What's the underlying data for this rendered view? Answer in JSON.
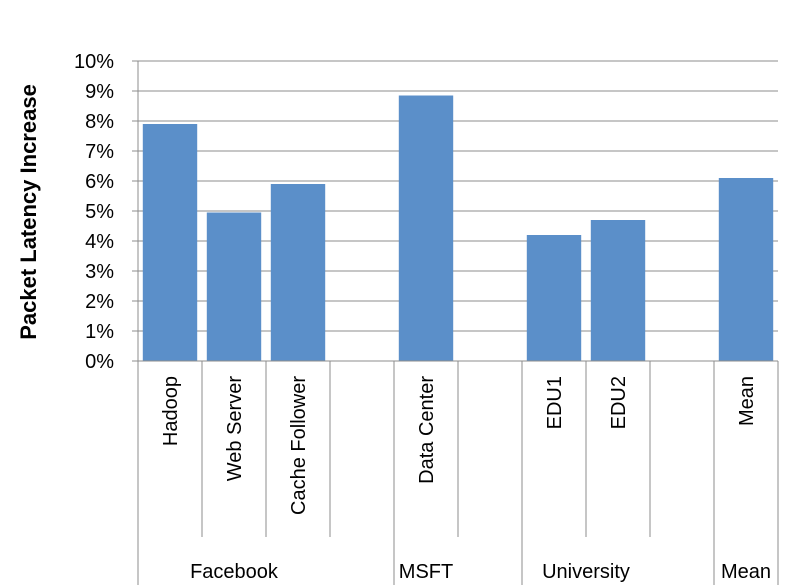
{
  "chart_data": {
    "type": "bar",
    "title": "",
    "xlabel": "",
    "ylabel": "Packet Latency Increase",
    "ylim": [
      0,
      10
    ],
    "yticks": [
      "0%",
      "1%",
      "2%",
      "3%",
      "4%",
      "5%",
      "6%",
      "7%",
      "8%",
      "9%",
      "10%"
    ],
    "grid": true,
    "bar_color": "#5B8FC9",
    "categories": [
      "Hadoop",
      "Web Server",
      "Cache Follower",
      "",
      "Data Center",
      "",
      "EDU1",
      "EDU2",
      "",
      "Mean"
    ],
    "values": [
      7.9,
      4.95,
      5.9,
      null,
      8.85,
      null,
      4.2,
      4.7,
      null,
      6.1
    ],
    "groups": [
      {
        "label": "Facebook",
        "span": 4
      },
      {
        "label": "MSFT",
        "span": 2
      },
      {
        "label": "University",
        "span": 3
      },
      {
        "label": "Mean",
        "span": 1
      }
    ]
  }
}
